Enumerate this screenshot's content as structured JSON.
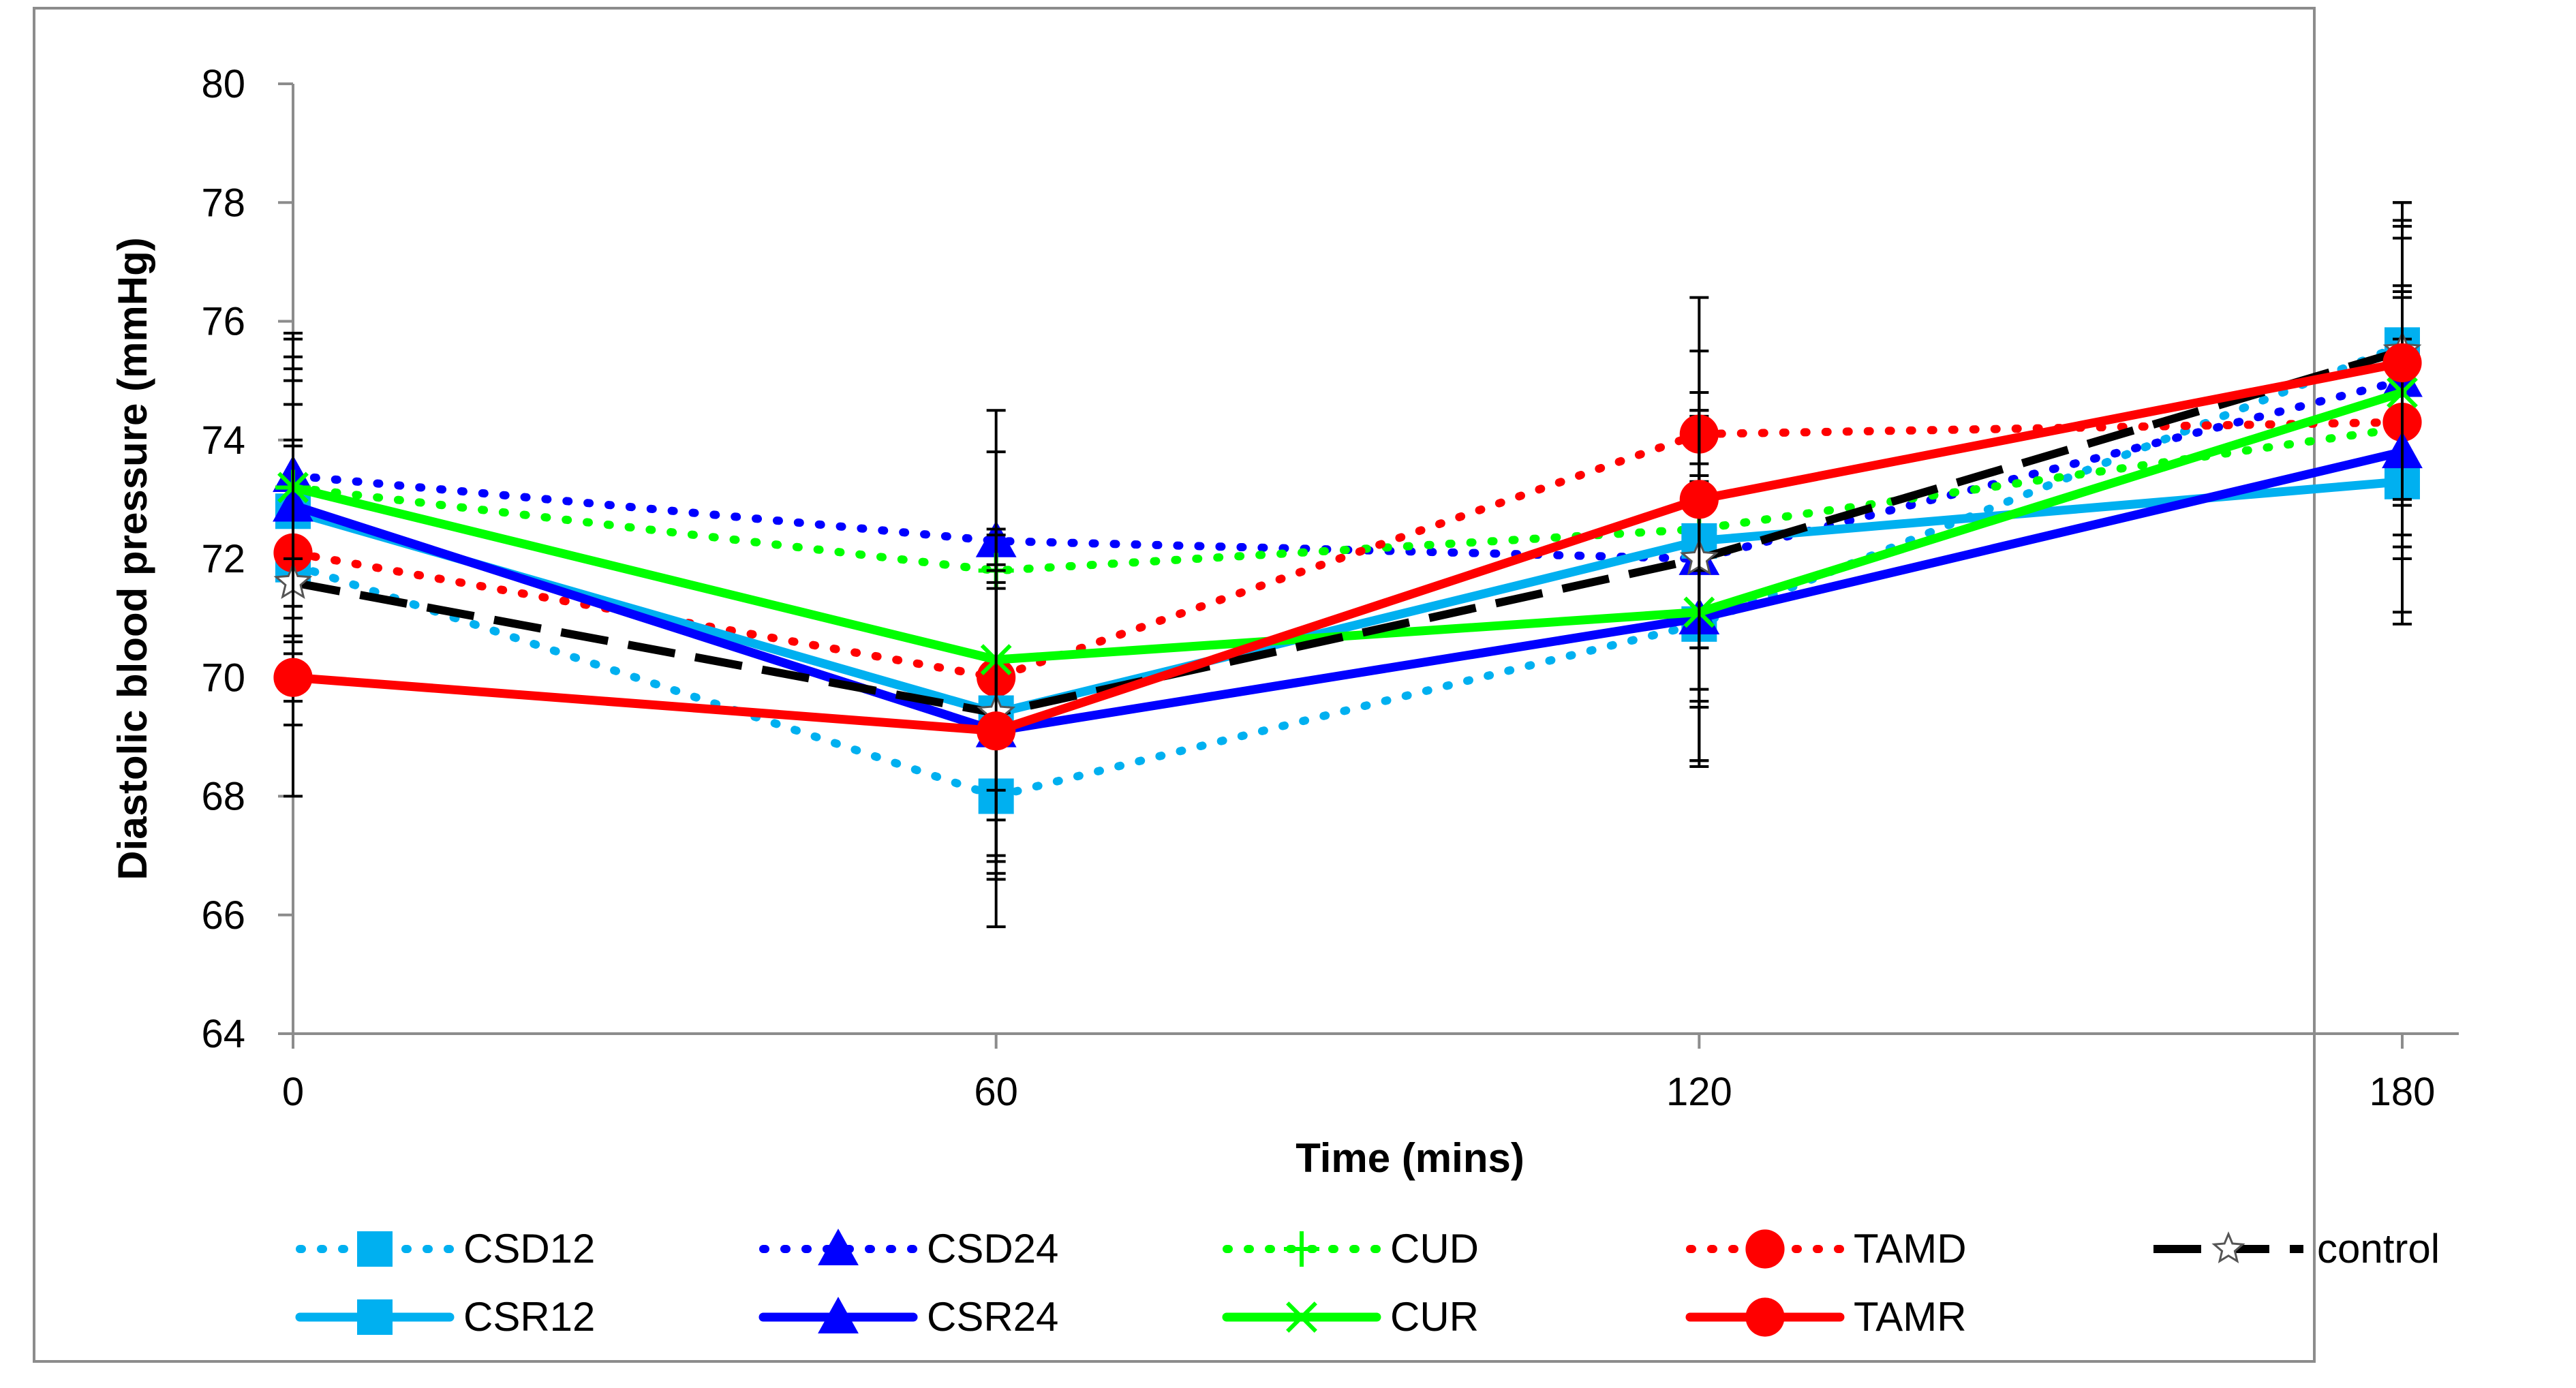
{
  "chart_data": {
    "type": "line",
    "title": "",
    "xlabel": "Time (mins)",
    "ylabel": "Diastolic blood pressure (mmHg)",
    "x": [
      0,
      60,
      120,
      180
    ],
    "x_ticks": [
      "0",
      "60",
      "120",
      "180"
    ],
    "ylim": [
      64,
      80
    ],
    "y_ticks": [
      "64",
      "66",
      "68",
      "70",
      "72",
      "74",
      "76",
      "78",
      "80"
    ],
    "grid": false,
    "legend_position": "bottom",
    "series": [
      {
        "name": "CSD12",
        "values": [
          71.9,
          68.0,
          70.9,
          75.6
        ],
        "errors": [
          2.0,
          2.2,
          2.4,
          2.4
        ],
        "color": "#00b0f0",
        "dash": "dotted",
        "marker": "square"
      },
      {
        "name": "CSD24",
        "values": [
          73.4,
          72.3,
          72.0,
          75.0
        ],
        "errors": [
          2.4,
          2.2,
          2.4,
          2.6
        ],
        "color": "#0000ff",
        "dash": "dotted",
        "marker": "triangle"
      },
      {
        "name": "CUD",
        "values": [
          73.2,
          71.8,
          72.5,
          74.2
        ],
        "errors": [
          2.0,
          2.0,
          2.0,
          2.2
        ],
        "color": "#00ff00",
        "dash": "dotted",
        "marker": "plus"
      },
      {
        "name": "TAMD",
        "values": [
          72.1,
          70.0,
          74.1,
          74.3
        ],
        "errors": [
          2.5,
          2.4,
          2.3,
          2.3
        ],
        "color": "#ff0000",
        "dash": "dotted",
        "marker": "circle"
      },
      {
        "name": "control",
        "values": [
          71.6,
          69.4,
          72.0,
          75.5
        ],
        "errors": [
          2.4,
          2.5,
          2.5,
          2.5
        ],
        "color": "#000000",
        "dash": "dashed",
        "marker": "star"
      },
      {
        "name": "CSR12",
        "values": [
          72.8,
          69.4,
          72.3,
          73.3
        ],
        "errors": [
          2.2,
          2.4,
          2.5,
          2.4
        ],
        "color": "#00b0f0",
        "dash": "solid",
        "marker": "square"
      },
      {
        "name": "CSR24",
        "values": [
          72.9,
          69.1,
          71.0,
          73.8
        ],
        "errors": [
          2.5,
          2.5,
          2.4,
          2.7
        ],
        "color": "#0000ff",
        "dash": "solid",
        "marker": "triangle"
      },
      {
        "name": "CUR",
        "values": [
          73.2,
          70.3,
          71.1,
          74.8
        ],
        "errors": [
          2.5,
          2.2,
          2.5,
          2.6
        ],
        "color": "#00ff00",
        "dash": "solid",
        "marker": "x"
      },
      {
        "name": "TAMR",
        "values": [
          70.0,
          69.1,
          73.0,
          75.3
        ],
        "errors": [
          2.0,
          2.4,
          2.5,
          2.4
        ],
        "color": "#ff0000",
        "dash": "solid",
        "marker": "circle"
      }
    ]
  }
}
